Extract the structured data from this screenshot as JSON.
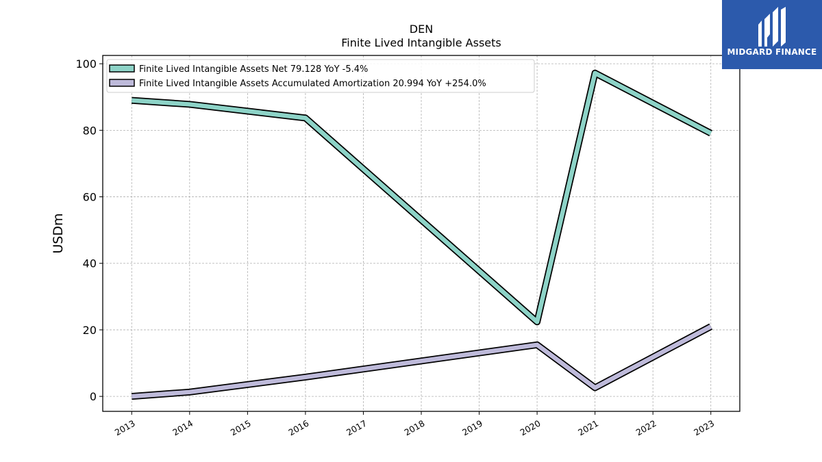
{
  "chart_data": {
    "type": "line",
    "title": "DEN",
    "subtitle": "Finite Lived Intangible Assets",
    "ylabel": "USDm",
    "xlabel": "",
    "x": [
      "2013",
      "2014",
      "2015",
      "2016",
      "2017",
      "2018",
      "2019",
      "2020",
      "2021",
      "2022",
      "2023"
    ],
    "ylim": [
      -4.5,
      102.5
    ],
    "yticks": [
      0,
      20,
      40,
      60,
      80,
      100
    ],
    "grid": true,
    "legend_position": "top-left",
    "series": [
      {
        "name": "Finite Lived Intangible Assets Net  79.128 YoY -5.4%",
        "color": "#8dd3c7",
        "points": [
          [
            "2013",
            89.0
          ],
          [
            "2014",
            87.8
          ],
          [
            "2016",
            83.7
          ],
          [
            "2020",
            22.4
          ],
          [
            "2021",
            97.2
          ],
          [
            "2023",
            79.1
          ]
        ]
      },
      {
        "name": "Finite Lived Intangible Assets Accumulated Amortization  20.994 YoY +254.0%",
        "color": "#bebada",
        "points": [
          [
            "2013",
            0.0
          ],
          [
            "2014",
            1.3
          ],
          [
            "2016",
            5.8
          ],
          [
            "2020",
            15.5
          ],
          [
            "2021",
            2.6
          ],
          [
            "2023",
            21.0
          ]
        ]
      }
    ]
  },
  "logo": {
    "text": "MIDGARD FINANCE",
    "background": "#2c5aac"
  }
}
